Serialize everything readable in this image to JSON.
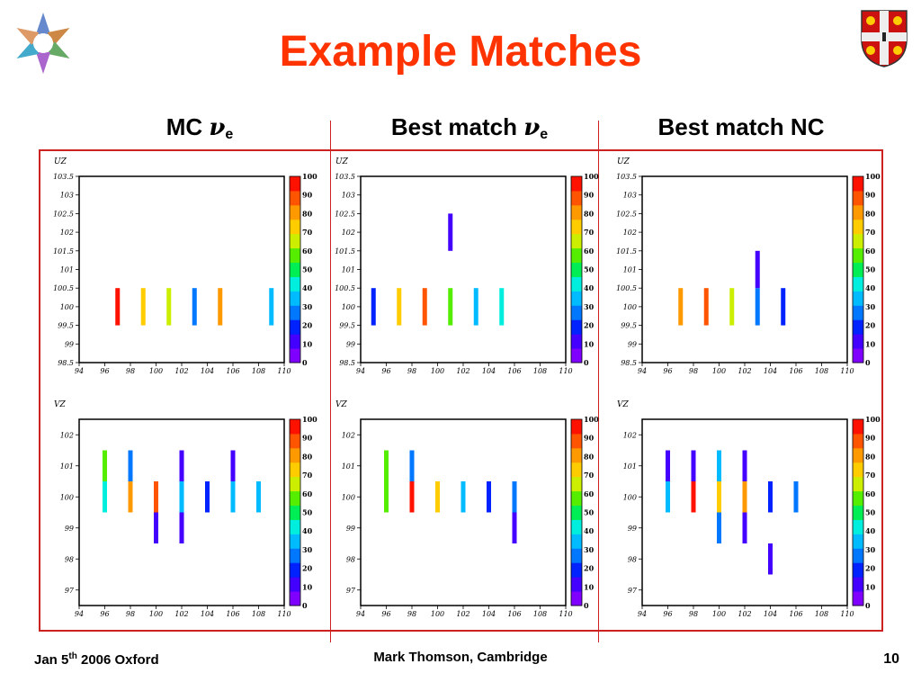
{
  "slide": {
    "title": "Example Matches",
    "footer_left_prefix": "Jan 5",
    "footer_left_sup": "th",
    "footer_left_suffix": " 2006 Oxford",
    "footer_center": "Mark Thomson, Cambridge",
    "page_number": "10"
  },
  "columns": [
    {
      "label_prefix": "MC ",
      "greek": "ν",
      "subscript": "e"
    },
    {
      "label_prefix": "Best match ",
      "greek": "ν",
      "subscript": "e"
    },
    {
      "label_prefix": "Best match NC",
      "greek": "",
      "subscript": ""
    }
  ],
  "colors": {
    "title": "#ff3300",
    "frame": "#cc2222",
    "palette": [
      "#7f00ff",
      "#4400ff",
      "#0022ff",
      "#0077ff",
      "#00bbff",
      "#00eedd",
      "#00ee55",
      "#55ee00",
      "#ccee00",
      "#ffcc00",
      "#ff9900",
      "#ff5500",
      "#ff1100"
    ]
  },
  "chart_data": [
    {
      "type": "heatmap",
      "panel": "MC nu_e UZ",
      "ylabel": "UZ",
      "xlim": [
        94,
        110
      ],
      "ylim": [
        98.5,
        103.5
      ],
      "xticks": [
        "94",
        "96",
        "98",
        "100",
        "102",
        "104",
        "106",
        "108",
        "110"
      ],
      "yticks": [
        "98.5",
        "99",
        "99.5",
        "100",
        "100.5",
        "101",
        "101.5",
        "102",
        "102.5",
        "103",
        "103.5"
      ],
      "colorbar": {
        "min": 0,
        "max": 100,
        "ticks": [
          "0",
          "10",
          "20",
          "30",
          "40",
          "50",
          "60",
          "70",
          "80",
          "90",
          "100"
        ]
      },
      "cells": [
        {
          "x": 97,
          "y0": 99.5,
          "y1": 100.5,
          "v": 100
        },
        {
          "x": 99,
          "y0": 99.5,
          "y1": 100.5,
          "v": 75
        },
        {
          "x": 101,
          "y0": 99.5,
          "y1": 100.5,
          "v": 63
        },
        {
          "x": 103,
          "y0": 99.5,
          "y1": 100.5,
          "v": 25
        },
        {
          "x": 105,
          "y0": 99.5,
          "y1": 100.5,
          "v": 80
        },
        {
          "x": 109,
          "y0": 99.5,
          "y1": 100.5,
          "v": 35
        }
      ]
    },
    {
      "type": "heatmap",
      "panel": "Best match nu_e UZ",
      "ylabel": "UZ",
      "xlim": [
        94,
        110
      ],
      "ylim": [
        98.5,
        103.5
      ],
      "xticks": [
        "94",
        "96",
        "98",
        "100",
        "102",
        "104",
        "106",
        "108",
        "110"
      ],
      "yticks": [
        "98.5",
        "99",
        "99.5",
        "100",
        "100.5",
        "101",
        "101.5",
        "102",
        "102.5",
        "103",
        "103.5"
      ],
      "colorbar": {
        "min": 0,
        "max": 100,
        "ticks": [
          "0",
          "10",
          "20",
          "30",
          "40",
          "50",
          "60",
          "70",
          "80",
          "90",
          "100"
        ]
      },
      "cells": [
        {
          "x": 95,
          "y0": 99.5,
          "y1": 100.5,
          "v": 15
        },
        {
          "x": 97,
          "y0": 99.5,
          "y1": 100.5,
          "v": 72
        },
        {
          "x": 99,
          "y0": 99.5,
          "y1": 100.5,
          "v": 95
        },
        {
          "x": 101,
          "y0": 99.5,
          "y1": 100.5,
          "v": 55
        },
        {
          "x": 101,
          "y0": 101.5,
          "y1": 102.5,
          "v": 10
        },
        {
          "x": 103,
          "y0": 99.5,
          "y1": 100.5,
          "v": 30
        },
        {
          "x": 105,
          "y0": 99.5,
          "y1": 100.5,
          "v": 45
        }
      ]
    },
    {
      "type": "heatmap",
      "panel": "Best match NC UZ",
      "ylabel": "UZ",
      "xlim": [
        94,
        110
      ],
      "ylim": [
        98.5,
        103.5
      ],
      "xticks": [
        "94",
        "96",
        "98",
        "100",
        "102",
        "104",
        "106",
        "108",
        "110"
      ],
      "yticks": [
        "98.5",
        "99",
        "99.5",
        "100",
        "100.5",
        "101",
        "101.5",
        "102",
        "102.5",
        "103",
        "103.5"
      ],
      "colorbar": {
        "min": 0,
        "max": 100,
        "ticks": [
          "0",
          "10",
          "20",
          "30",
          "40",
          "50",
          "60",
          "70",
          "80",
          "90",
          "100"
        ]
      },
      "cells": [
        {
          "x": 97,
          "y0": 99.5,
          "y1": 100.5,
          "v": 85
        },
        {
          "x": 99,
          "y0": 99.5,
          "y1": 100.5,
          "v": 95
        },
        {
          "x": 101,
          "y0": 99.5,
          "y1": 100.5,
          "v": 65
        },
        {
          "x": 103,
          "y0": 99.5,
          "y1": 100.5,
          "v": 25
        },
        {
          "x": 103,
          "y0": 100.5,
          "y1": 101.5,
          "v": 8
        },
        {
          "x": 105,
          "y0": 99.5,
          "y1": 100.5,
          "v": 18
        }
      ]
    },
    {
      "type": "heatmap",
      "panel": "MC nu_e VZ",
      "ylabel": "VZ",
      "xlim": [
        94,
        110
      ],
      "ylim": [
        96.5,
        102.5
      ],
      "xticks": [
        "94",
        "96",
        "98",
        "100",
        "102",
        "104",
        "106",
        "108",
        "110"
      ],
      "yticks": [
        "97",
        "98",
        "99",
        "100",
        "101",
        "102"
      ],
      "colorbar": {
        "min": 0,
        "max": 100,
        "ticks": [
          "0",
          "10",
          "20",
          "30",
          "40",
          "50",
          "60",
          "70",
          "80",
          "90",
          "100"
        ]
      },
      "cells": [
        {
          "x": 96,
          "y0": 100.5,
          "y1": 101.5,
          "v": 55
        },
        {
          "x": 96,
          "y0": 99.5,
          "y1": 100.5,
          "v": 45
        },
        {
          "x": 98,
          "y0": 100.5,
          "y1": 101.5,
          "v": 25
        },
        {
          "x": 98,
          "y0": 99.5,
          "y1": 100.5,
          "v": 85
        },
        {
          "x": 100,
          "y0": 99.5,
          "y1": 100.5,
          "v": 88
        },
        {
          "x": 100,
          "y0": 98.5,
          "y1": 99.5,
          "v": 5
        },
        {
          "x": 102,
          "y0": 100.5,
          "y1": 101.5,
          "v": 5
        },
        {
          "x": 102,
          "y0": 99.5,
          "y1": 100.5,
          "v": 35
        },
        {
          "x": 102,
          "y0": 98.5,
          "y1": 99.5,
          "v": 10
        },
        {
          "x": 104,
          "y0": 99.5,
          "y1": 100.5,
          "v": 15
        },
        {
          "x": 106,
          "y0": 100.5,
          "y1": 101.5,
          "v": 5
        },
        {
          "x": 106,
          "y0": 99.5,
          "y1": 100.5,
          "v": 35
        },
        {
          "x": 108,
          "y0": 99.5,
          "y1": 100.5,
          "v": 30
        }
      ]
    },
    {
      "type": "heatmap",
      "panel": "Best match nu_e VZ",
      "ylabel": "VZ",
      "xlim": [
        94,
        110
      ],
      "ylim": [
        96.5,
        102.5
      ],
      "xticks": [
        "94",
        "96",
        "98",
        "100",
        "102",
        "104",
        "106",
        "108",
        "110"
      ],
      "yticks": [
        "97",
        "98",
        "99",
        "100",
        "101",
        "102"
      ],
      "colorbar": {
        "min": 0,
        "max": 100,
        "ticks": [
          "0",
          "10",
          "20",
          "30",
          "40",
          "50",
          "60",
          "70",
          "80",
          "90",
          "100"
        ]
      },
      "cells": [
        {
          "x": 96,
          "y0": 99.5,
          "y1": 101.5,
          "v": 58
        },
        {
          "x": 98,
          "y0": 100.5,
          "y1": 101.5,
          "v": 25
        },
        {
          "x": 98,
          "y0": 99.5,
          "y1": 100.5,
          "v": 98
        },
        {
          "x": 100,
          "y0": 99.5,
          "y1": 100.5,
          "v": 75
        },
        {
          "x": 102,
          "y0": 99.5,
          "y1": 100.5,
          "v": 35
        },
        {
          "x": 104,
          "y0": 99.5,
          "y1": 100.5,
          "v": 15
        },
        {
          "x": 106,
          "y0": 99.5,
          "y1": 100.5,
          "v": 25
        },
        {
          "x": 106,
          "y0": 98.5,
          "y1": 99.5,
          "v": 5
        }
      ]
    },
    {
      "type": "heatmap",
      "panel": "Best match NC VZ",
      "ylabel": "VZ",
      "xlim": [
        94,
        110
      ],
      "ylim": [
        96.5,
        102.5
      ],
      "xticks": [
        "94",
        "96",
        "98",
        "100",
        "102",
        "104",
        "106",
        "108",
        "110"
      ],
      "yticks": [
        "97",
        "98",
        "99",
        "100",
        "101",
        "102"
      ],
      "colorbar": {
        "min": 0,
        "max": 100,
        "ticks": [
          "0",
          "10",
          "20",
          "30",
          "40",
          "50",
          "60",
          "70",
          "80",
          "90",
          "100"
        ]
      },
      "cells": [
        {
          "x": 96,
          "y0": 100.5,
          "y1": 101.5,
          "v": 8
        },
        {
          "x": 96,
          "y0": 99.5,
          "y1": 100.5,
          "v": 30
        },
        {
          "x": 98,
          "y0": 100.5,
          "y1": 101.5,
          "v": 5
        },
        {
          "x": 98,
          "y0": 99.5,
          "y1": 100.5,
          "v": 98
        },
        {
          "x": 100,
          "y0": 100.5,
          "y1": 101.5,
          "v": 35
        },
        {
          "x": 100,
          "y0": 99.5,
          "y1": 100.5,
          "v": 78
        },
        {
          "x": 100,
          "y0": 98.5,
          "y1": 99.5,
          "v": 25
        },
        {
          "x": 102,
          "y0": 100.5,
          "y1": 101.5,
          "v": 5
        },
        {
          "x": 102,
          "y0": 99.5,
          "y1": 100.5,
          "v": 82
        },
        {
          "x": 102,
          "y0": 98.5,
          "y1": 99.5,
          "v": 8
        },
        {
          "x": 104,
          "y0": 99.5,
          "y1": 100.5,
          "v": 20
        },
        {
          "x": 104,
          "y0": 97.5,
          "y1": 98.5,
          "v": 5
        },
        {
          "x": 106,
          "y0": 99.5,
          "y1": 100.5,
          "v": 22
        }
      ]
    }
  ]
}
